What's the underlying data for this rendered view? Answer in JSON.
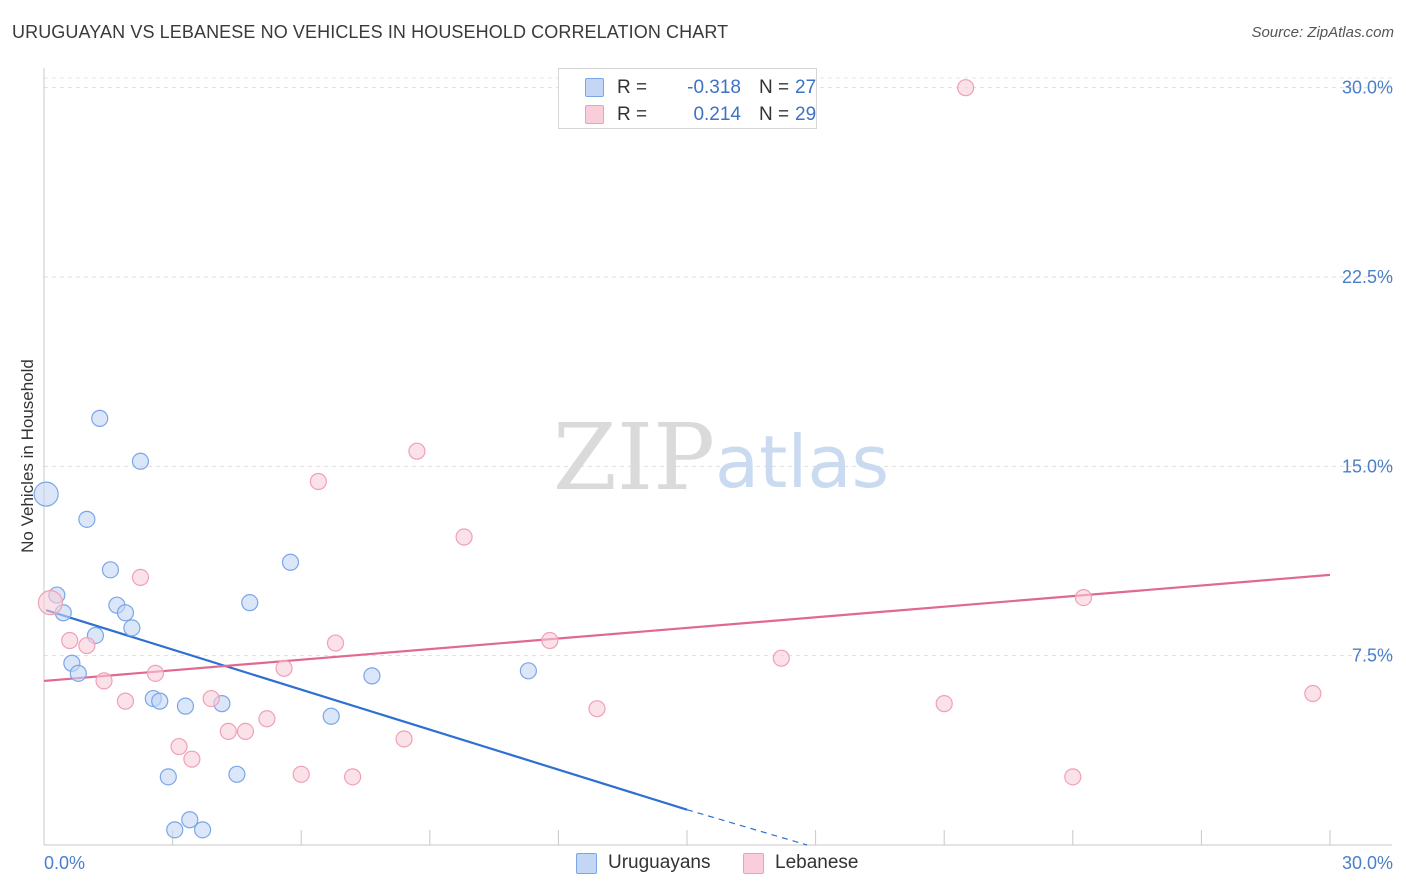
{
  "header": {
    "title": "URUGUAYAN VS LEBANESE NO VEHICLES IN HOUSEHOLD CORRELATION CHART",
    "source": "Source: ZipAtlas.com"
  },
  "watermark": {
    "zip": "ZIP",
    "atlas": "atlas"
  },
  "legend": {
    "r_label": "R =",
    "n_label": "N =",
    "series": [
      {
        "name": "Uruguayans",
        "r": "-0.318",
        "n": "27"
      },
      {
        "name": "Lebanese",
        "r": "0.214",
        "n": "29"
      }
    ]
  },
  "chart_data": {
    "type": "scatter",
    "title": "URUGUAYAN VS LEBANESE NO VEHICLES IN HOUSEHOLD CORRELATION CHART",
    "xlabel": "",
    "ylabel": "No Vehicles in Household",
    "xlim": [
      0,
      30
    ],
    "ylim": [
      0,
      30.7
    ],
    "x_tick_labels": [
      {
        "value": 0,
        "label": "0.0%"
      },
      {
        "value": 30,
        "label": "30.0%"
      }
    ],
    "y_tick_labels": [
      {
        "value": 7.5,
        "label": "7.5%"
      },
      {
        "value": 15,
        "label": "15.0%"
      },
      {
        "value": 22.5,
        "label": "22.5%"
      },
      {
        "value": 30,
        "label": "30.0%"
      }
    ],
    "grid": true,
    "legend_position": "top-center",
    "series": [
      {
        "name": "Uruguayans",
        "color": "#7aa6e8",
        "fill": "#c3d6f5",
        "line_color": "#2f6fd1",
        "points": [
          [
            0.05,
            13.9
          ],
          [
            0.3,
            9.9
          ],
          [
            0.45,
            9.2
          ],
          [
            0.65,
            7.2
          ],
          [
            0.8,
            6.8
          ],
          [
            1.0,
            12.9
          ],
          [
            1.2,
            8.3
          ],
          [
            1.3,
            16.9
          ],
          [
            1.55,
            10.9
          ],
          [
            1.7,
            9.5
          ],
          [
            1.9,
            9.2
          ],
          [
            2.05,
            8.6
          ],
          [
            2.25,
            15.2
          ],
          [
            2.55,
            5.8
          ],
          [
            2.7,
            5.7
          ],
          [
            2.9,
            2.7
          ],
          [
            3.05,
            0.6
          ],
          [
            3.3,
            5.5
          ],
          [
            3.4,
            1.0
          ],
          [
            3.7,
            0.6
          ],
          [
            4.15,
            5.6
          ],
          [
            4.5,
            2.8
          ],
          [
            4.8,
            9.6
          ],
          [
            5.75,
            11.2
          ],
          [
            6.7,
            5.1
          ],
          [
            7.65,
            6.7
          ],
          [
            11.3,
            6.9
          ]
        ],
        "big_points": [
          [
            0.05,
            13.9
          ]
        ],
        "trend": {
          "x0": 0.05,
          "y0": 9.3,
          "x1": 15.0,
          "y1": 1.4,
          "dash_to_x": 17.8,
          "dash_to_y": 0.0
        }
      },
      {
        "name": "Lebanese",
        "color": "#f0a0b8",
        "fill": "#f9cdd9",
        "line_color": "#e06891",
        "points": [
          [
            0.15,
            9.6
          ],
          [
            0.6,
            8.1
          ],
          [
            1.0,
            7.9
          ],
          [
            1.4,
            6.5
          ],
          [
            1.9,
            5.7
          ],
          [
            2.25,
            10.6
          ],
          [
            2.6,
            6.8
          ],
          [
            3.15,
            3.9
          ],
          [
            3.45,
            3.4
          ],
          [
            3.9,
            5.8
          ],
          [
            4.3,
            4.5
          ],
          [
            4.7,
            4.5
          ],
          [
            5.2,
            5.0
          ],
          [
            5.6,
            7.0
          ],
          [
            6.0,
            2.8
          ],
          [
            6.4,
            14.4
          ],
          [
            6.8,
            8.0
          ],
          [
            7.2,
            2.7
          ],
          [
            8.4,
            4.2
          ],
          [
            8.7,
            15.6
          ],
          [
            9.8,
            12.2
          ],
          [
            11.8,
            8.1
          ],
          [
            12.9,
            5.4
          ],
          [
            17.2,
            7.4
          ],
          [
            21.0,
            5.6
          ],
          [
            21.5,
            30.0
          ],
          [
            24.0,
            2.7
          ],
          [
            24.25,
            9.8
          ],
          [
            29.6,
            6.0
          ]
        ],
        "big_points": [
          [
            0.15,
            9.6
          ]
        ],
        "trend": {
          "x0": 0.0,
          "y0": 6.5,
          "x1": 30.0,
          "y1": 10.7
        }
      }
    ]
  }
}
